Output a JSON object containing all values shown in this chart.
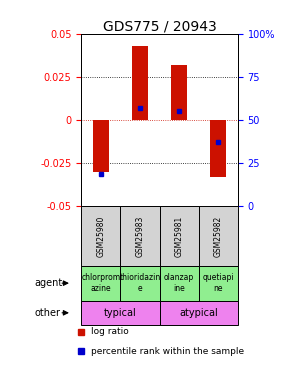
{
  "title": "GDS775 / 20943",
  "samples": [
    "GSM25980",
    "GSM25983",
    "GSM25981",
    "GSM25982"
  ],
  "log_ratios": [
    -0.03,
    0.043,
    0.032,
    -0.033
  ],
  "percentile_ranks": [
    0.19,
    0.57,
    0.55,
    0.37
  ],
  "agents": [
    "chlorprom\nazine",
    "thioridazin\ne",
    "olanzap\nine",
    "quetiapi\nne"
  ],
  "other_groups": [
    [
      "typical",
      2
    ],
    [
      "atypical",
      2
    ]
  ],
  "other_color": "#ee82ee",
  "agent_color": "#90ee90",
  "gsm_color": "#d3d3d3",
  "ylim": [
    -0.05,
    0.05
  ],
  "y_ticks_left": [
    -0.05,
    -0.025,
    0,
    0.025,
    0.05
  ],
  "y_ticks_right": [
    0,
    25,
    50,
    75,
    100
  ],
  "bar_color": "#cc1100",
  "dot_color": "#0000cc",
  "title_fontsize": 10,
  "tick_fontsize": 7,
  "label_fontsize": 7,
  "bar_width": 0.4
}
